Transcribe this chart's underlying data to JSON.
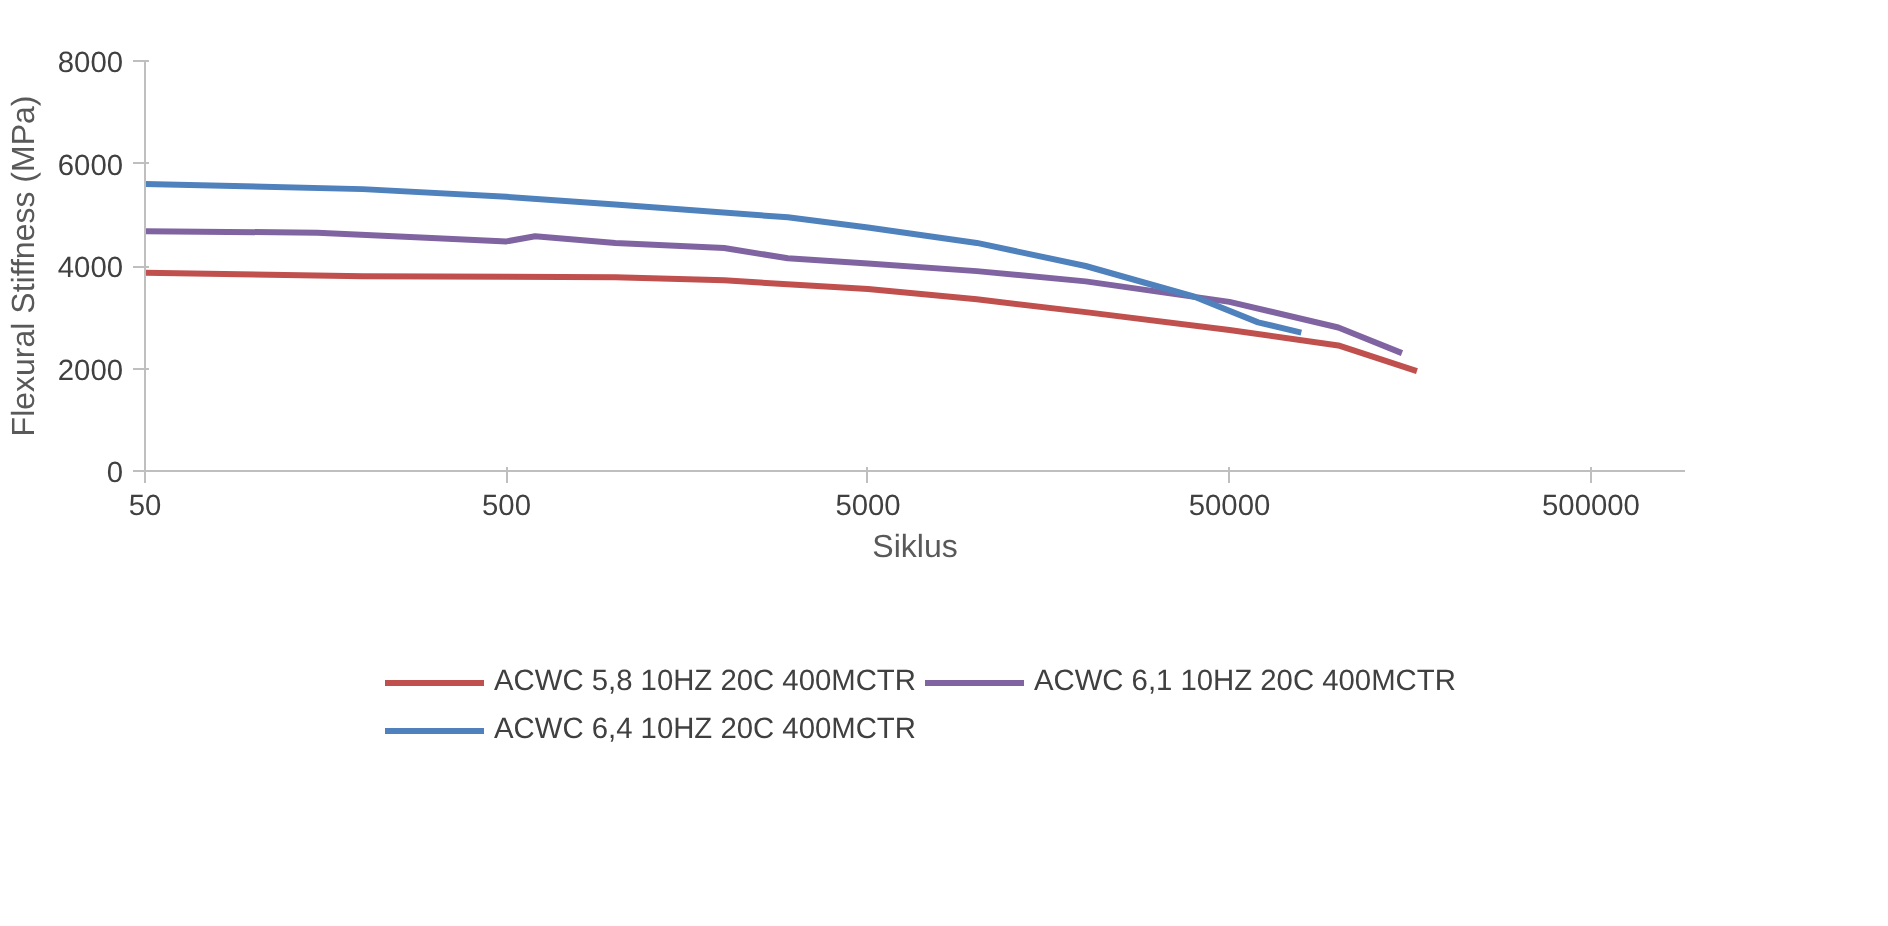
{
  "chart_data": {
    "type": "line",
    "xlabel": "Siklus",
    "ylabel": "Flexural Stiffness (MPa)",
    "log": "x",
    "xlim": [
      50,
      910000
    ],
    "xticks": [
      50,
      500,
      5000,
      50000,
      500000
    ],
    "ylim": [
      0,
      8000
    ],
    "yticks": [
      0,
      2000,
      4000,
      6000,
      8000
    ],
    "grid": false,
    "legend": "bottom",
    "marker": "none",
    "line_style": "solid",
    "series": [
      {
        "name": "ACWC 5,8 10HZ 20C 400MCTR",
        "color": "#c0504d",
        "x": [
          50,
          200,
          1000,
          2000,
          5000,
          10000,
          20000,
          50000,
          100000,
          165000
        ],
        "values": [
          3870,
          3800,
          3780,
          3720,
          3550,
          3350,
          3100,
          2750,
          2450,
          1950
        ]
      },
      {
        "name": "ACWC 6,1 10HZ 20C 400MCTR",
        "color": "#8064a2",
        "x": [
          50,
          150,
          300,
          500,
          600,
          1000,
          2000,
          3000,
          5000,
          10000,
          20000,
          50000,
          100000,
          150000
        ],
        "values": [
          4680,
          4650,
          4550,
          4480,
          4580,
          4450,
          4350,
          4150,
          4050,
          3900,
          3700,
          3300,
          2800,
          2300
        ]
      },
      {
        "name": "ACWC 6,4 10HZ 20C 400MCTR",
        "color": "#4f81bd",
        "x": [
          50,
          200,
          500,
          1000,
          3000,
          5000,
          10000,
          20000,
          40000,
          60000,
          79000
        ],
        "values": [
          5600,
          5500,
          5350,
          5200,
          4950,
          4750,
          4450,
          4000,
          3400,
          2900,
          2700
        ]
      }
    ]
  }
}
